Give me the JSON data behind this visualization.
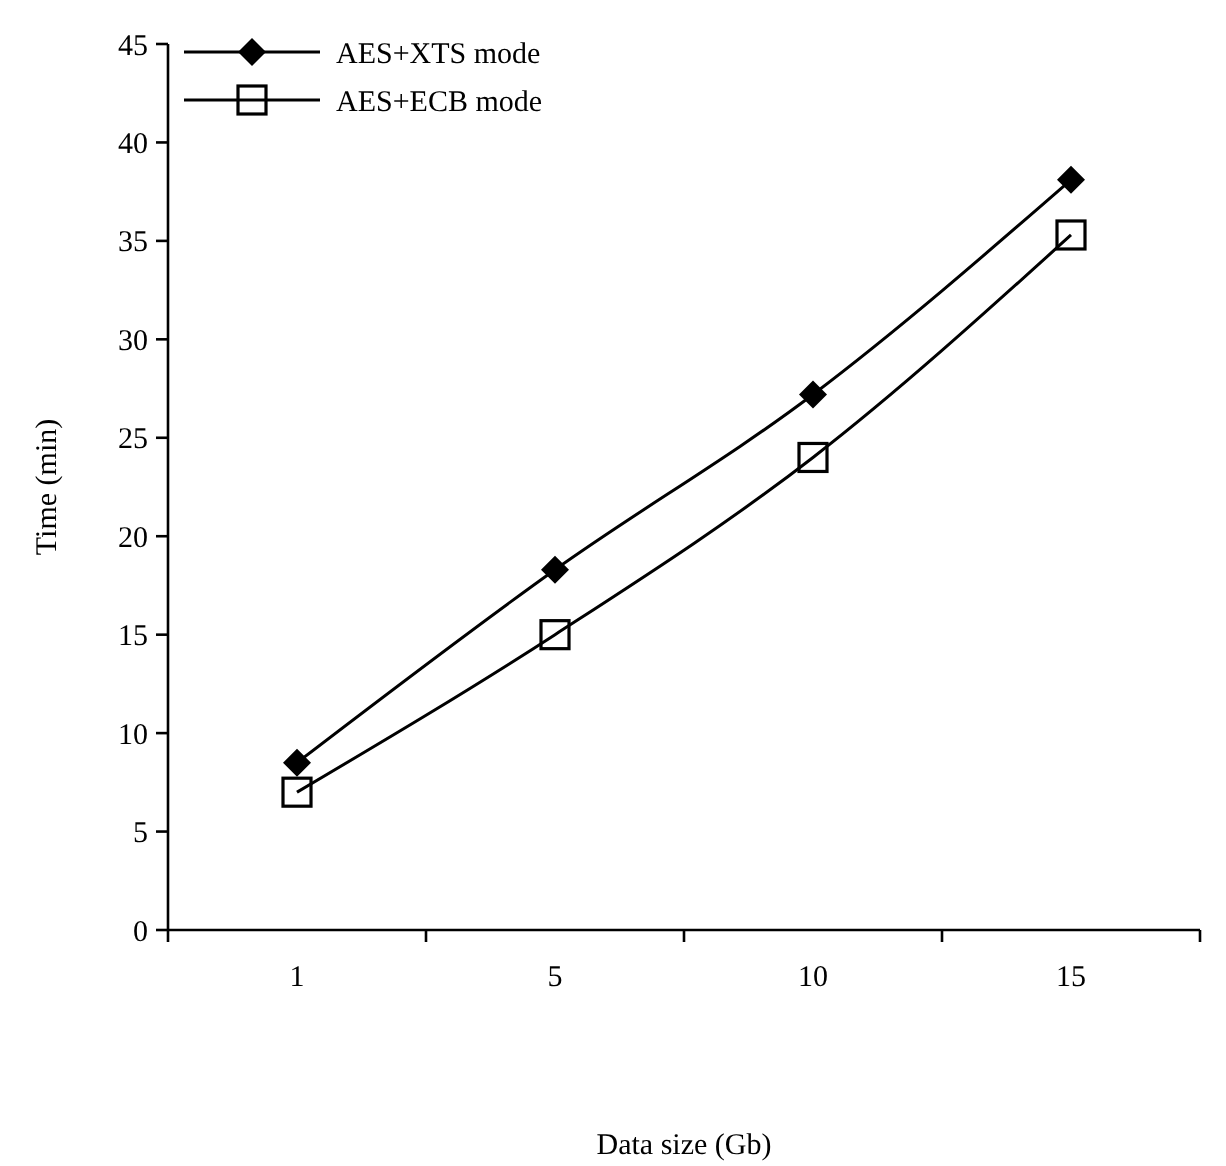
{
  "chart_data": {
    "type": "line",
    "xlabel": "Data size (Gb)",
    "ylabel": "Time (min)",
    "categories": [
      "1",
      "5",
      "10",
      "15"
    ],
    "ylim": [
      0,
      45
    ],
    "yticks": [
      0,
      5,
      10,
      15,
      20,
      25,
      30,
      35,
      40,
      45
    ],
    "grid": false,
    "legend": "top left",
    "line_style": "solid",
    "series": [
      {
        "name": "AES+XTS mode",
        "color": "#000000",
        "marker": "diamond",
        "values": [
          8.5,
          18.3,
          27.2,
          38.1
        ]
      },
      {
        "name": "AES+ECB mode",
        "color": "#000000",
        "marker": "square",
        "values": [
          7,
          15,
          24,
          35.3
        ]
      }
    ]
  }
}
